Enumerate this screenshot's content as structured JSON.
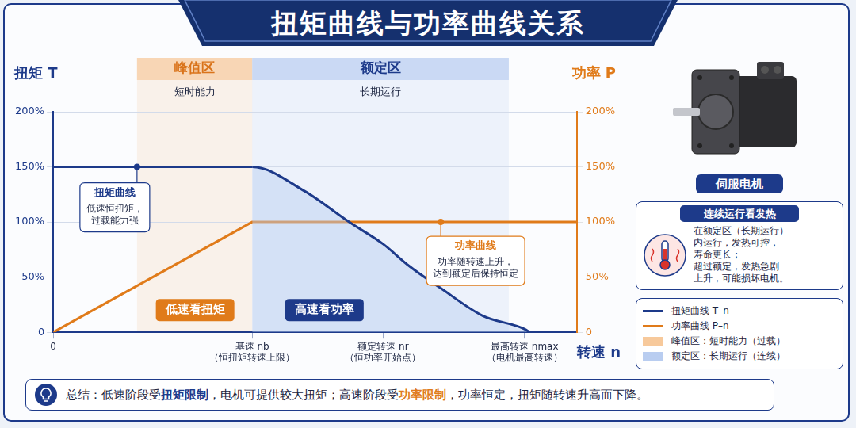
{
  "title": "扭矩曲线与功率曲线关系",
  "chart_data": {
    "type": "line",
    "x_label": "转速 n",
    "y_label": "扭矩 T",
    "y2_label": "功率 P",
    "xlim": [
      0,
      100
    ],
    "xticks": [
      0,
      {
        "value": 38,
        "label": [
          "基速 nb",
          "（恒扭矩转速上限）"
        ]
      },
      {
        "value": 63,
        "label": [
          "额定转速 nr",
          "（恒功率开始点）"
        ]
      },
      {
        "value": 90,
        "label": [
          "最高转速 nmax",
          "（电机最高转速）"
        ]
      }
    ],
    "ylim": [
      0,
      200
    ],
    "yticks": [
      0,
      {
        "value": 50,
        "label": "50%"
      },
      {
        "value": 100,
        "label": "100%"
      },
      {
        "value": 150,
        "label": "150%"
      },
      {
        "value": 200,
        "label": "200%"
      }
    ],
    "y2lim": [
      0,
      200
    ],
    "y2ticks": [
      0,
      {
        "value": 50,
        "label": "50%"
      },
      {
        "value": 100,
        "label": "100%"
      },
      {
        "value": 150,
        "label": "150%"
      },
      {
        "value": 200,
        "label": "200%"
      }
    ],
    "grid": true,
    "legend": "right",
    "series": [
      {
        "name": "扭矩曲线 T–n",
        "color": "#1d3a8a",
        "x": [
          0,
          38,
          48,
          56.5,
          63,
          68,
          74,
          82,
          90,
          91
        ],
        "values": [
          150,
          150,
          128,
          100,
          80,
          60,
          40,
          15,
          3,
          0
        ]
      },
      {
        "name": "功率曲线 P–n",
        "color": "#e07b1a",
        "axis": "y2",
        "x": [
          0,
          38,
          100
        ],
        "values": [
          0,
          100,
          100
        ]
      }
    ],
    "zones": [
      {
        "label": "峰值区",
        "sublabel": "短时能力",
        "legend_label": "峰值区：短时能力（过载）",
        "range": [
          16,
          38
        ],
        "color": "#f7c99b"
      },
      {
        "label": "额定区",
        "sublabel": "长期运行",
        "legend_label": "额定区：长期运行（连续）",
        "range": [
          38,
          87
        ],
        "color": "#b9cdf0"
      }
    ],
    "annotations": [
      {
        "title": "扭矩曲线",
        "text": [
          "低速恒扭矩，",
          "过载能力强"
        ],
        "point": [
          16,
          150
        ],
        "color": "#1d3a8a"
      },
      {
        "title": "功率曲线",
        "text": [
          "功率随转速上升，",
          "达到额定后保持恒定"
        ],
        "point": [
          74,
          100
        ],
        "axis": "y2",
        "color": "#e07b1a"
      },
      {
        "text": "低速看扭矩",
        "color": "#e07b1a"
      },
      {
        "text": "高速看功率",
        "color": "#1d3a8a"
      }
    ]
  },
  "side_panel": {
    "motor_label": "伺服电机",
    "heat_box": {
      "title": "连续运行看发热",
      "lines": [
        "在额定区（长期运行）",
        "内运行，发热可控，",
        "寿命更长；",
        "超过额定，发热急剧",
        "上升，可能损坏电机。"
      ]
    }
  },
  "summary": [
    {
      "text": "总结：低速阶段受"
    },
    {
      "text": "扭矩限制",
      "color": "#1d3a8a"
    },
    {
      "text": "，电机可提供较大扭矩；高速阶段受"
    },
    {
      "text": "功率限制",
      "color": "#e07b1a"
    },
    {
      "text": "，功率恒定，扭矩随转速升高而下降。"
    }
  ]
}
